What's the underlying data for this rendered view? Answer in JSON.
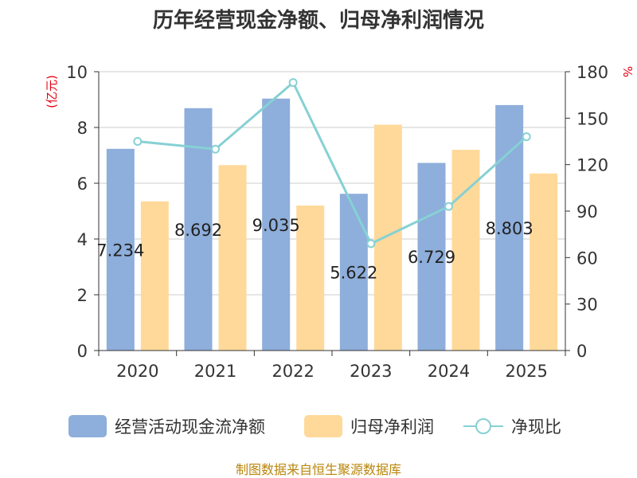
{
  "chart_data": {
    "type": "bar",
    "title": "历年经营现金净额、归母净利润情况",
    "categories": [
      "2020",
      "2021",
      "2022",
      "2023",
      "2024",
      "2025"
    ],
    "series": [
      {
        "name": "经营活动现金流净额",
        "type": "bar",
        "axis": "left",
        "values": [
          7.234,
          8.692,
          9.035,
          5.622,
          6.729,
          8.803
        ],
        "color": "#8eaedb"
      },
      {
        "name": "归母净利润",
        "type": "bar",
        "axis": "left",
        "values": [
          5.35,
          6.65,
          5.2,
          8.1,
          7.2,
          6.35
        ],
        "color": "#ffd99a"
      },
      {
        "name": "净现比",
        "type": "line",
        "axis": "right",
        "values": [
          135,
          130,
          173,
          69,
          93,
          138
        ],
        "color": "#86d1d4"
      }
    ],
    "data_labels": [
      "7.234",
      "8.692",
      "9.035",
      "5.622",
      "6.729",
      "8.803"
    ],
    "y_left": {
      "label": "(亿元)",
      "ylim": [
        0,
        10
      ],
      "ticks": [
        0,
        2,
        4,
        6,
        8,
        10
      ]
    },
    "y_right": {
      "label": "%",
      "ylim": [
        0,
        180
      ],
      "ticks": [
        0,
        30,
        60,
        90,
        120,
        150,
        180
      ]
    },
    "grid": true,
    "legend_position": "bottom"
  },
  "source": "制图数据来自恒生聚源数据库",
  "colors": {
    "axis_label": "#e60012",
    "source": "#b8860b"
  }
}
